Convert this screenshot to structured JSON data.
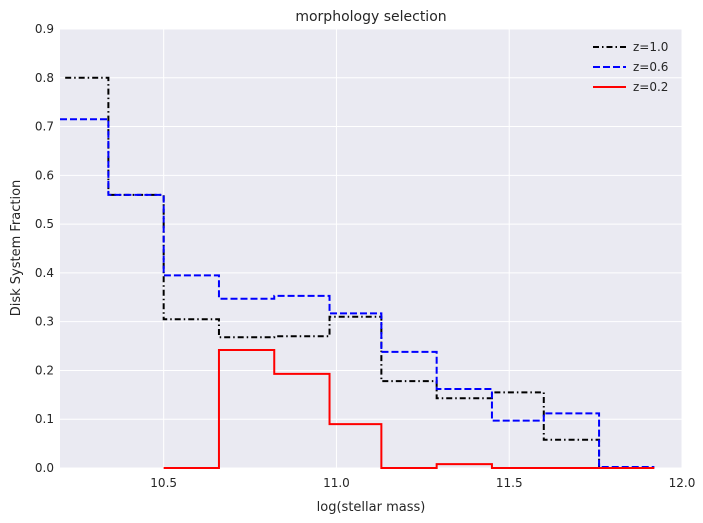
{
  "chart_data": {
    "type": "line",
    "title": "morphology selection",
    "xlabel": "log(stellar mass)",
    "ylabel": "Disk System Fraction",
    "xlim": [
      10.2,
      12.0
    ],
    "ylim": [
      0.0,
      0.9
    ],
    "xticks": [
      10.5,
      11.0,
      11.5,
      12.0
    ],
    "xtick_labels": [
      "10.5",
      "11.0",
      "11.5",
      "12.0"
    ],
    "yticks": [
      0.0,
      0.1,
      0.2,
      0.3,
      0.4,
      0.5,
      0.6,
      0.7,
      0.8,
      0.9
    ],
    "ytick_labels": [
      "0.0",
      "0.1",
      "0.2",
      "0.3",
      "0.4",
      "0.5",
      "0.6",
      "0.7",
      "0.8",
      "0.9"
    ],
    "grid": true,
    "legend_position": "top-right",
    "step": "post",
    "series": [
      {
        "name": "z=1.0",
        "color": "#000000",
        "dash": "dashdot",
        "x": [
          10.215,
          10.34,
          10.5,
          10.66,
          10.82,
          10.98,
          11.13,
          11.29,
          11.45,
          11.6,
          11.76
        ],
        "y": [
          0.8,
          0.56,
          0.305,
          0.268,
          0.27,
          0.31,
          0.178,
          0.143,
          0.155,
          0.058,
          0.0
        ]
      },
      {
        "name": "z=0.6",
        "color": "#0000ff",
        "dash": "dashed",
        "x": [
          10.2,
          10.34,
          10.5,
          10.66,
          10.82,
          10.98,
          11.13,
          11.29,
          11.45,
          11.6,
          11.76,
          11.92
        ],
        "y": [
          0.715,
          0.56,
          0.395,
          0.347,
          0.353,
          0.317,
          0.238,
          0.162,
          0.097,
          0.112,
          0.002,
          0.002
        ]
      },
      {
        "name": "z=0.2",
        "color": "#ff0000",
        "dash": "solid",
        "x": [
          10.5,
          10.66,
          10.82,
          10.98,
          11.13,
          11.29,
          11.45,
          11.6,
          11.76,
          11.92
        ],
        "y": [
          0.0,
          0.242,
          0.193,
          0.09,
          0.0,
          0.008,
          0.0,
          0.0,
          0.0,
          0.0
        ]
      }
    ]
  }
}
